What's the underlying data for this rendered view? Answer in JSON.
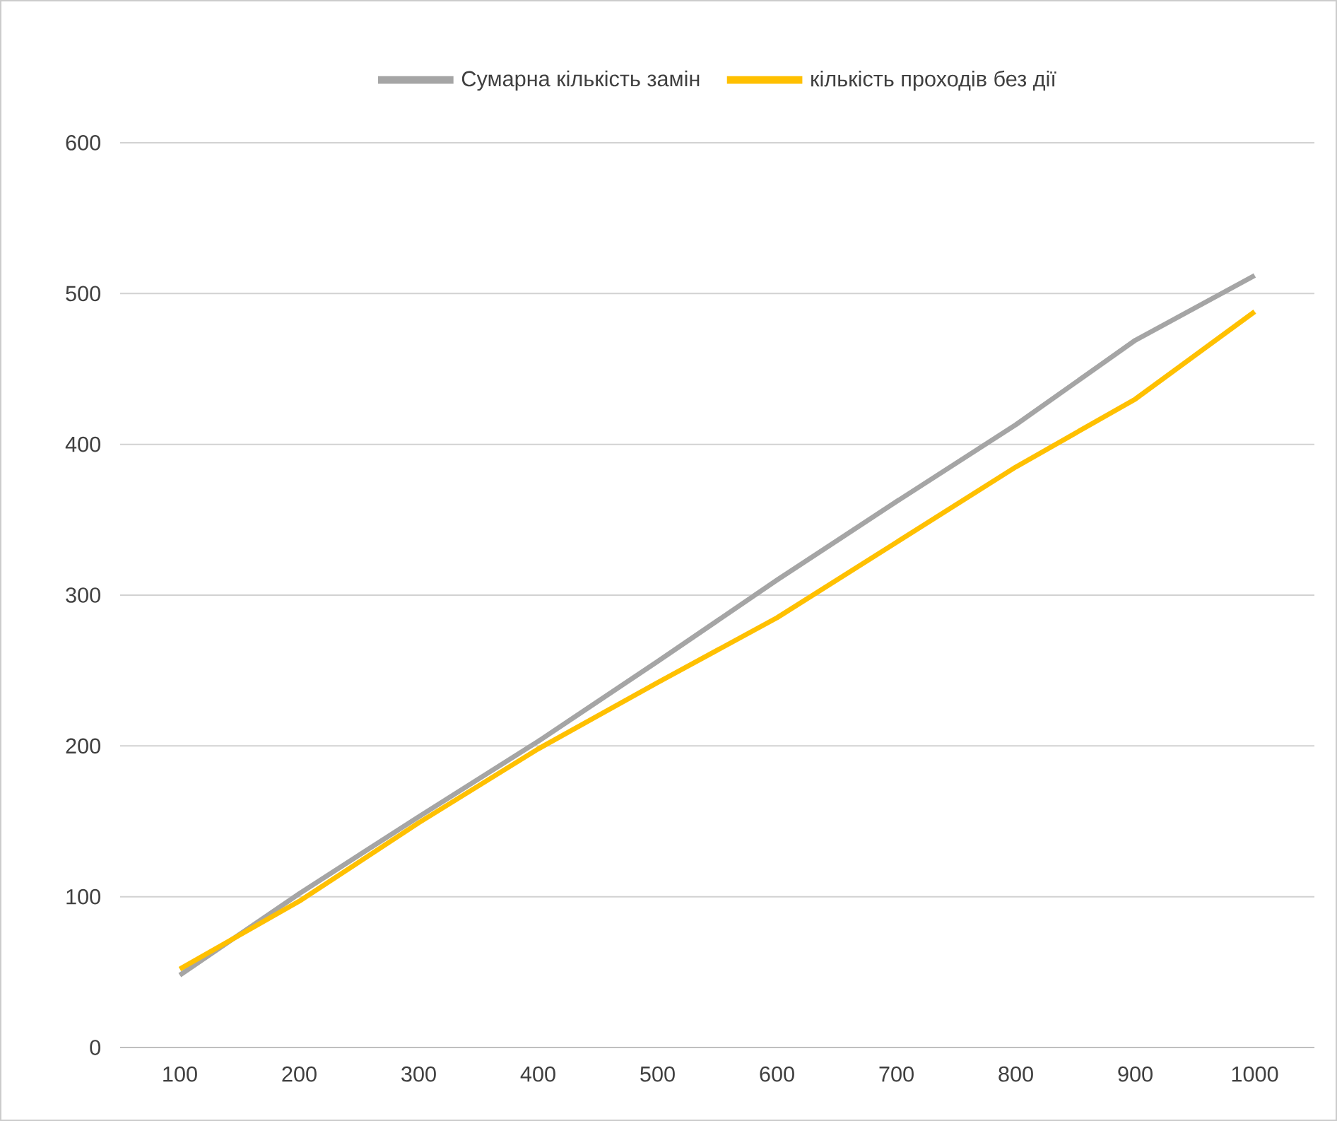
{
  "chart_data": {
    "type": "line",
    "categories": [
      "100",
      "200",
      "300",
      "400",
      "500",
      "600",
      "700",
      "800",
      "900",
      "1000"
    ],
    "series": [
      {
        "name": "Сумарна кількість замін",
        "color": "#a5a5a5",
        "values": [
          48,
          102,
          153,
          203,
          256,
          310,
          362,
          413,
          469,
          512
        ]
      },
      {
        "name": "кількість проходів без дії",
        "color": "#ffc000",
        "values": [
          52,
          97,
          149,
          198,
          242,
          285,
          335,
          385,
          430,
          488
        ]
      }
    ],
    "ylim": [
      0,
      600
    ],
    "yticks": [
      0,
      100,
      200,
      300,
      400,
      500,
      600
    ],
    "grid": "y",
    "legend": "top",
    "marker": "none",
    "line_style": "solid"
  }
}
